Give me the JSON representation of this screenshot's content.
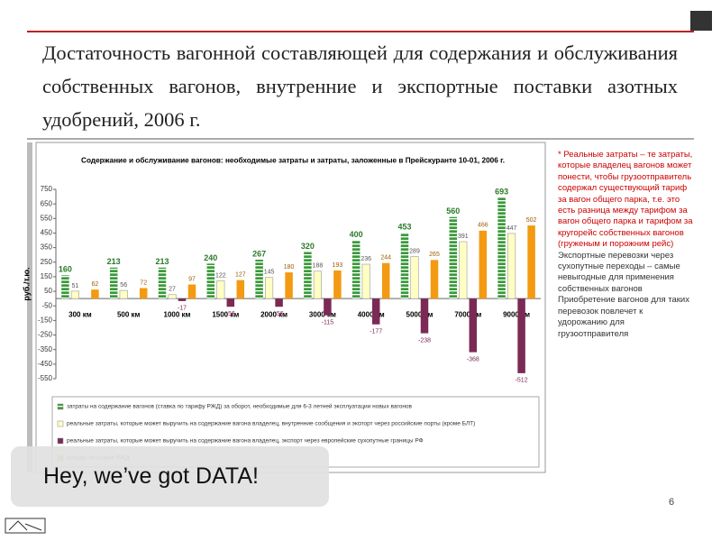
{
  "slide": {
    "title": "Достаточность вагонной составляющей для содержания и обслуживания собственных вагонов, внутренние и экспортные поставки азотных удобрений, 2006 г.",
    "notes": [
      "* Реальные затраты – те затраты, которые владелец вагонов может понести, чтобы грузоотправитель содержал существующий тариф за вагон общего парка, т.е. это есть разница между тарифом за вагон общего парка и тарифом за кругорейс собственных вагонов (груженым и порожним рейс)",
      "Экспортные перевозки через сухопутные переходы – самые невыгодные для применения собственных вагонов",
      "Приобретение вагонов для таких перевозок повлечет к удорожанию для грузоотправителя"
    ],
    "overlay": "Hey, we’ve got DATA!",
    "page_number": "6"
  },
  "chart_data": {
    "type": "bar",
    "title": "Содержание и обслуживание вагонов: необходимые затраты и затраты, заложенные в Прейскуранте 10-01, 2006 г.",
    "y_label": "руб./т.ю.",
    "categories": [
      "300 км",
      "500 км",
      "1000 км",
      "1500 км",
      "2000 км",
      "3000 км",
      "4000 км",
      "5000 км",
      "7000 км",
      "9000 км"
    ],
    "series": [
      {
        "name": "затраты на содержание вагонов (ставка по тарифу РЖД) за оборот, необходимые для 6-3 летней эксплуатации новых вагонов",
        "color": "#3a9a3a",
        "values": [
          160,
          213,
          213,
          240,
          267,
          320,
          400,
          453,
          560,
          693
        ]
      },
      {
        "name": "реальные затраты, которые может выручить на содержание вагона владелец, внутренние сообщения и экспорт через российские порты (кроме БЛТ)",
        "color": "#ffffc4",
        "values": [
          51,
          56,
          27,
          122,
          145,
          188,
          236,
          289,
          391,
          447
        ]
      },
      {
        "name": "реальные затраты, которые может выручить на содержание вагона владелец, экспорт через европейские сухопутные границы РФ",
        "color": "#7b2a55",
        "values": [
          null,
          null,
          -17,
          -56,
          -56,
          -115,
          -177,
          -238,
          -368,
          -512
        ]
      },
      {
        "name": "доходы по ставке РЖД",
        "color": "#f39a12",
        "values": [
          62,
          72,
          97,
          127,
          180,
          193,
          244,
          265,
          466,
          502
        ]
      }
    ],
    "ylim": [
      -550,
      750
    ],
    "yticks": [
      750,
      650,
      550,
      450,
      350,
      250,
      150,
      50,
      -50,
      -150,
      -250,
      -350,
      -450,
      -550
    ],
    "grid": false
  }
}
